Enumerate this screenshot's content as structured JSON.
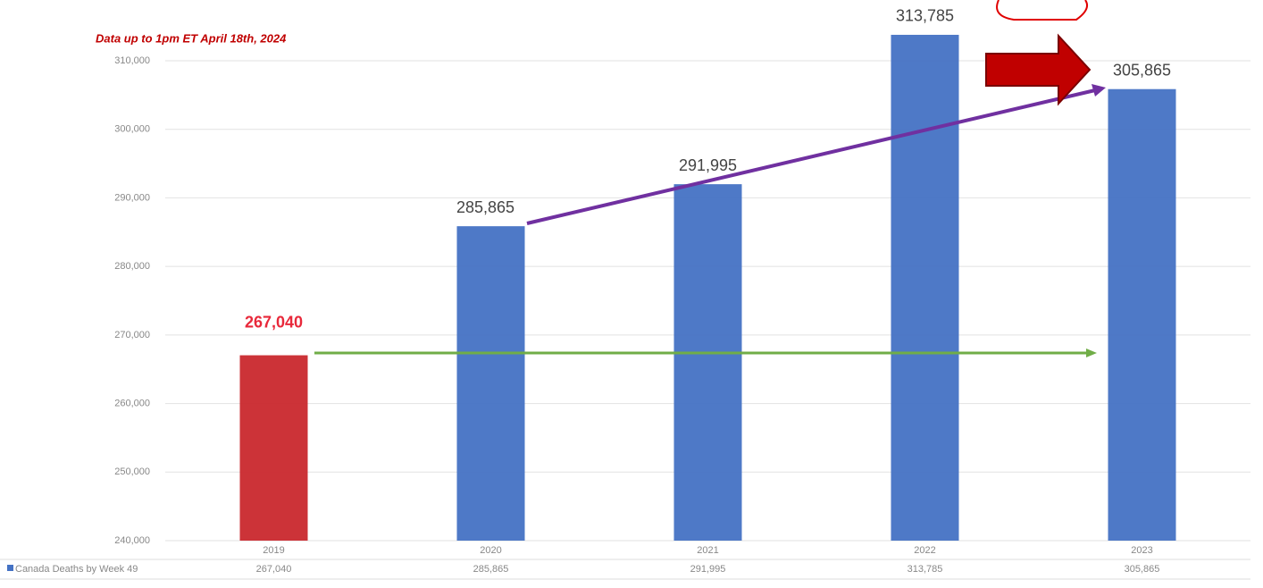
{
  "chart_data": {
    "type": "bar",
    "annotation": "Data up to 1pm ET April 18th, 2024",
    "categories": [
      "2019",
      "2020",
      "2021",
      "2022",
      "2023"
    ],
    "series": [
      {
        "name": "Canada Deaths by Week 49",
        "color": "#4472c4",
        "colors": [
          "#c9282d",
          "#4472c4",
          "#4472c4",
          "#4472c4",
          "#4472c4"
        ],
        "values": [
          267040,
          285865,
          291995,
          313785,
          305865
        ],
        "value_labels": [
          "267,040",
          "285,865",
          "291,995",
          "313,785",
          "305,865"
        ]
      }
    ],
    "ylim": [
      240000,
      310000
    ],
    "yticks": [
      {
        "value": 240000,
        "label": "240,000"
      },
      {
        "value": 250000,
        "label": "250,000"
      },
      {
        "value": 260000,
        "label": "260,000"
      },
      {
        "value": 270000,
        "label": "270,000"
      },
      {
        "value": 280000,
        "label": "280,000"
      },
      {
        "value": 290000,
        "label": "290,000"
      },
      {
        "value": 300000,
        "label": "300,000"
      },
      {
        "value": 310000,
        "label": "310,000"
      }
    ],
    "grid": true
  }
}
